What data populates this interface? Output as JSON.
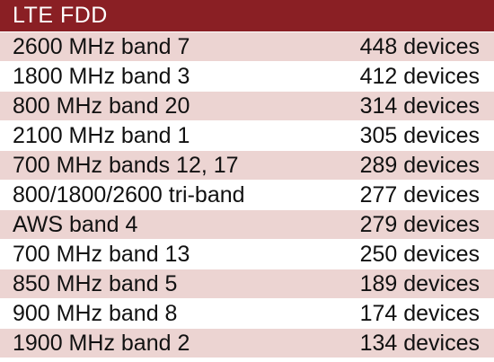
{
  "table": {
    "title": "LTE FDD",
    "rows": [
      {
        "band": "2600 MHz band 7",
        "devices": "448 devices"
      },
      {
        "band": "1800 MHz band 3",
        "devices": "412 devices"
      },
      {
        "band": "800 MHz band 20",
        "devices": "314 devices"
      },
      {
        "band": "2100 MHz band 1",
        "devices": "305 devices"
      },
      {
        "band": "700 MHz bands 12, 17",
        "devices": "289 devices"
      },
      {
        "band": "800/1800/2600 tri-band",
        "devices": "277 devices"
      },
      {
        "band": "AWS band 4",
        "devices": "279 devices"
      },
      {
        "band": "700 MHz band 13",
        "devices": "250 devices"
      },
      {
        "band": "850 MHz band 5",
        "devices": "189 devices"
      },
      {
        "band": "900 MHz band 8",
        "devices": "174 devices"
      },
      {
        "band": "1900 MHz band 2",
        "devices": "134 devices"
      }
    ]
  },
  "colors": {
    "header_background": "#8a1f24",
    "header_text": "#ffffff",
    "row_shaded": "#ecd4d2",
    "row_plain": "#ffffff",
    "text": "#111111"
  }
}
